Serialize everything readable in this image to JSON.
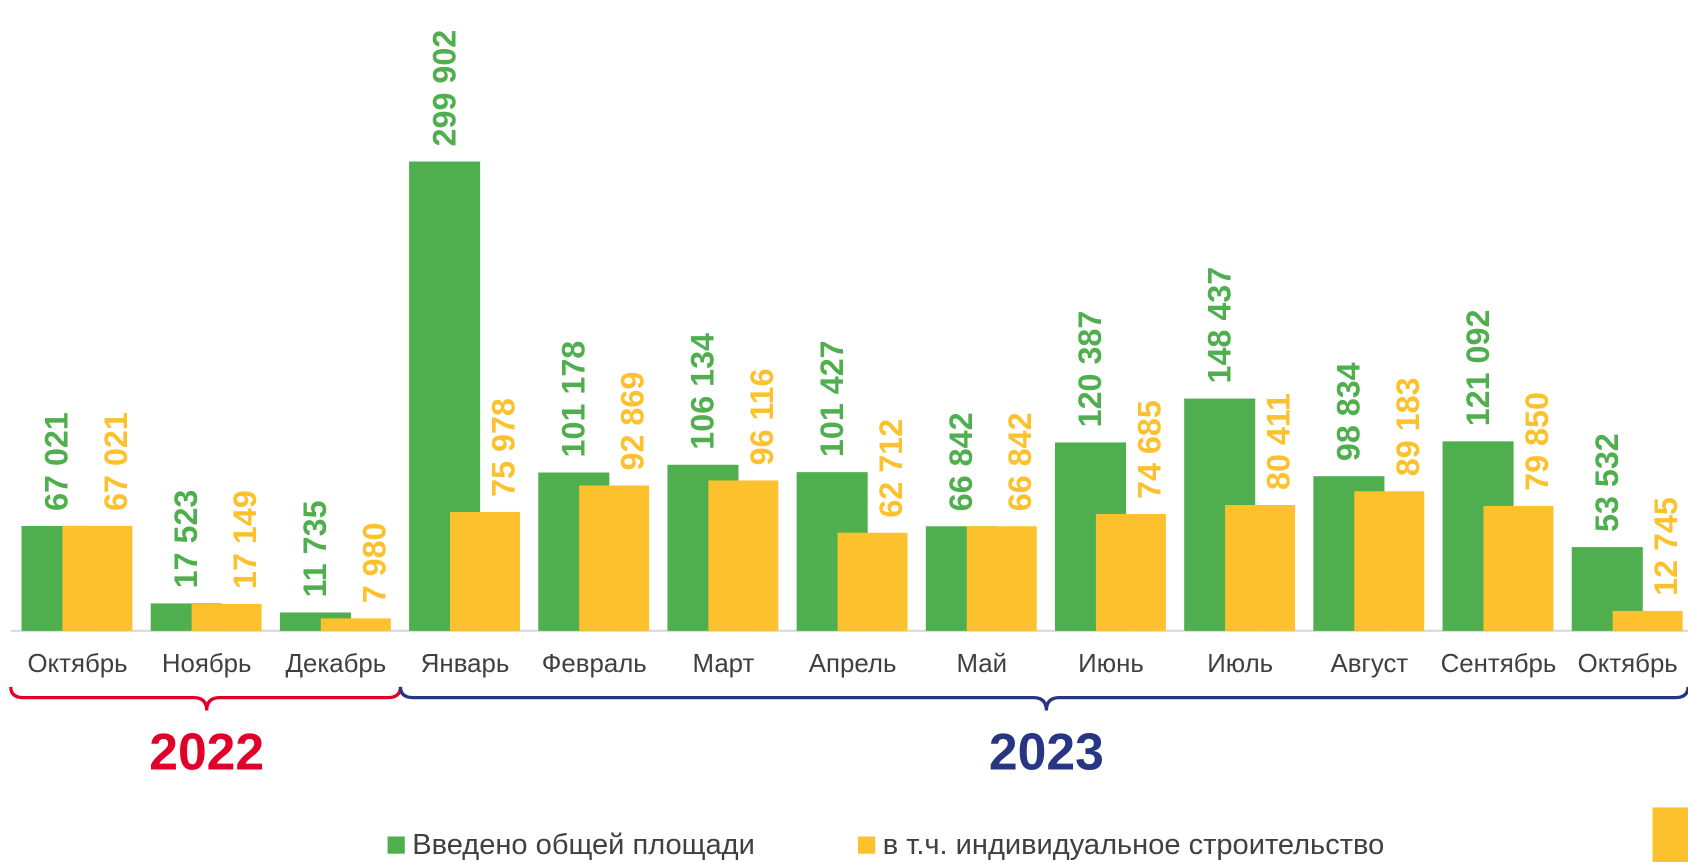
{
  "chart_data": {
    "type": "bar",
    "categories": [
      "Октябрь",
      "Ноябрь",
      "Декабрь",
      "Январь",
      "Февраль",
      "Март",
      "Апрель",
      "Май",
      "Июнь",
      "Июль",
      "Август",
      "Сентябрь",
      "Октябрь"
    ],
    "series": [
      {
        "name": "Введено общей площади",
        "color": "#4faf4e",
        "values": [
          67021,
          17523,
          11735,
          299902,
          101178,
          106134,
          101427,
          66842,
          120387,
          148437,
          98834,
          121092,
          53532
        ],
        "value_labels": [
          "67 021",
          "17 523",
          "11 735",
          "299 902",
          "101 178",
          "106 134",
          "101 427",
          "66 842",
          "120 387",
          "148 437",
          "98 834",
          "121 092",
          "53 532"
        ]
      },
      {
        "name": "в т.ч. индивидуальное строительство",
        "color": "#fcc12d",
        "values": [
          67021,
          17149,
          7980,
          75978,
          92869,
          96116,
          62712,
          66842,
          74685,
          80411,
          89183,
          79850,
          12745
        ],
        "value_labels": [
          "67 021",
          "17 149",
          "7 980",
          "75 978",
          "92 869",
          "96 116",
          "62 712",
          "66 842",
          "74 685",
          "80 411",
          "89 183",
          "79 850",
          "12 745"
        ]
      }
    ],
    "groups": [
      {
        "label": "2022",
        "color": "#e0002a",
        "span": 3
      },
      {
        "label": "2023",
        "color": "#283583",
        "span": 10
      }
    ],
    "ylim": [
      0,
      400000
    ]
  }
}
